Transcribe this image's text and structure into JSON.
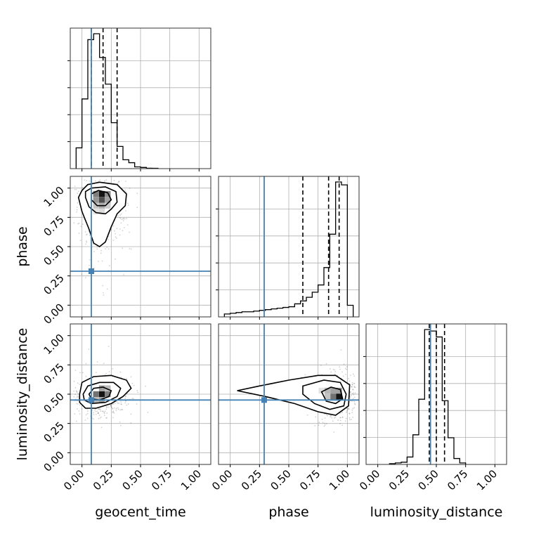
{
  "chart_data": {
    "type": "corner",
    "parameters": [
      "geocent_time",
      "phase",
      "luminosity_distance"
    ],
    "axis_labels": [
      "geocent_time",
      "phase",
      "luminosity_distance"
    ],
    "tick_labels": [
      "0.00",
      "0.25",
      "0.50",
      "0.75",
      "1.00"
    ],
    "ticks": [
      0,
      0.25,
      0.5,
      0.75,
      1.0
    ],
    "axis_range": [
      -0.1,
      1.1
    ],
    "grid": true,
    "truths": [
      0.08,
      0.29,
      0.45
    ],
    "truth_color": "#4682b4",
    "hist_color": "#000000",
    "quantiles": [
      [
        0.08,
        0.18,
        0.3
      ],
      [
        0.62,
        0.84,
        0.93
      ],
      [
        0.44,
        0.5,
        0.57
      ]
    ],
    "histograms": [
      {
        "parameter": "geocent_time",
        "bin_edges": [
          -0.05,
          0.0,
          0.05,
          0.1,
          0.15,
          0.2,
          0.25,
          0.3,
          0.35,
          0.4,
          0.45,
          0.5,
          0.55,
          0.6,
          0.65
        ],
        "counts": [
          0.14,
          0.47,
          0.87,
          0.91,
          0.75,
          0.57,
          0.31,
          0.15,
          0.06,
          0.04,
          0.012,
          0.008,
          0.003,
          0.002
        ]
      },
      {
        "parameter": "phase",
        "bin_edges": [
          -0.05,
          0.0,
          0.05,
          0.1,
          0.15,
          0.2,
          0.25,
          0.3,
          0.35,
          0.4,
          0.45,
          0.5,
          0.55,
          0.6,
          0.65,
          0.7,
          0.75,
          0.8,
          0.85,
          0.9,
          0.95,
          1.0,
          1.05
        ],
        "counts": [
          0.02,
          0.025,
          0.03,
          0.035,
          0.035,
          0.04,
          0.045,
          0.05,
          0.055,
          0.06,
          0.065,
          0.07,
          0.09,
          0.11,
          0.135,
          0.17,
          0.22,
          0.34,
          0.57,
          0.93,
          0.91,
          0.08
        ]
      },
      {
        "parameter": "luminosity_distance",
        "bin_edges": [
          0.1,
          0.15,
          0.2,
          0.25,
          0.3,
          0.35,
          0.4,
          0.45,
          0.5,
          0.55,
          0.6,
          0.65,
          0.7,
          0.75
        ],
        "counts": [
          0.005,
          0.01,
          0.015,
          0.05,
          0.2,
          0.44,
          0.91,
          0.9,
          0.86,
          0.43,
          0.18,
          0.04,
          0.01
        ]
      }
    ],
    "density_2d": [
      {
        "x": "geocent_time",
        "y": "phase",
        "peak": [
          0.17,
          0.93
        ],
        "spread": [
          0.09,
          0.2
        ],
        "contours": [
          [
            [
              0.0,
              0.98
            ],
            [
              0.05,
              1.03
            ],
            [
              0.15,
              1.05
            ],
            [
              0.3,
              1.03
            ],
            [
              0.38,
              0.95
            ],
            [
              0.37,
              0.85
            ],
            [
              0.3,
              0.78
            ],
            [
              0.25,
              0.67
            ],
            [
              0.2,
              0.54
            ],
            [
              0.15,
              0.5
            ],
            [
              0.1,
              0.53
            ],
            [
              0.06,
              0.65
            ],
            [
              0.0,
              0.8
            ],
            [
              -0.03,
              0.92
            ],
            [
              0.0,
              0.98
            ]
          ],
          [
            [
              0.03,
              0.97
            ],
            [
              0.08,
              1.0
            ],
            [
              0.2,
              1.01
            ],
            [
              0.29,
              0.97
            ],
            [
              0.3,
              0.88
            ],
            [
              0.25,
              0.82
            ],
            [
              0.2,
              0.78
            ],
            [
              0.12,
              0.79
            ],
            [
              0.06,
              0.84
            ],
            [
              0.03,
              0.92
            ],
            [
              0.03,
              0.97
            ]
          ],
          [
            [
              0.08,
              0.95
            ],
            [
              0.14,
              0.98
            ],
            [
              0.22,
              0.96
            ],
            [
              0.25,
              0.9
            ],
            [
              0.2,
              0.85
            ],
            [
              0.13,
              0.85
            ],
            [
              0.08,
              0.9
            ],
            [
              0.08,
              0.95
            ]
          ]
        ],
        "cells": [
          {
            "x": 0.17,
            "y": 0.95,
            "v": 1.0
          },
          {
            "x": 0.12,
            "y": 0.95,
            "v": 0.55
          },
          {
            "x": 0.22,
            "y": 0.95,
            "v": 0.5
          },
          {
            "x": 0.17,
            "y": 0.9,
            "v": 0.75
          },
          {
            "x": 0.12,
            "y": 0.9,
            "v": 0.45
          },
          {
            "x": 0.22,
            "y": 0.9,
            "v": 0.4
          },
          {
            "x": 0.17,
            "y": 0.85,
            "v": 0.35
          },
          {
            "x": 0.12,
            "y": 0.85,
            "v": 0.25
          },
          {
            "x": 0.22,
            "y": 0.85,
            "v": 0.22
          },
          {
            "x": 0.17,
            "y": 0.8,
            "v": 0.15
          },
          {
            "x": 0.12,
            "y": 0.8,
            "v": 0.12
          }
        ]
      },
      {
        "x": "geocent_time",
        "y": "luminosity_distance",
        "peak": [
          0.17,
          0.49
        ],
        "spread": [
          0.1,
          0.07
        ],
        "contours": [
          [
            [
              -0.02,
              0.5
            ],
            [
              0.0,
              0.6
            ],
            [
              0.1,
              0.65
            ],
            [
              0.25,
              0.66
            ],
            [
              0.38,
              0.62
            ],
            [
              0.42,
              0.55
            ],
            [
              0.35,
              0.48
            ],
            [
              0.25,
              0.42
            ],
            [
              0.12,
              0.38
            ],
            [
              0.03,
              0.38
            ],
            [
              -0.02,
              0.43
            ],
            [
              -0.02,
              0.5
            ]
          ],
          [
            [
              0.01,
              0.5
            ],
            [
              0.05,
              0.57
            ],
            [
              0.15,
              0.6
            ],
            [
              0.27,
              0.6
            ],
            [
              0.33,
              0.55
            ],
            [
              0.3,
              0.48
            ],
            [
              0.2,
              0.43
            ],
            [
              0.08,
              0.42
            ],
            [
              0.02,
              0.45
            ],
            [
              0.01,
              0.5
            ]
          ],
          [
            [
              0.06,
              0.5
            ],
            [
              0.1,
              0.55
            ],
            [
              0.18,
              0.56
            ],
            [
              0.25,
              0.53
            ],
            [
              0.23,
              0.48
            ],
            [
              0.15,
              0.45
            ],
            [
              0.08,
              0.46
            ],
            [
              0.06,
              0.5
            ]
          ]
        ],
        "cells": [
          {
            "x": 0.17,
            "y": 0.5,
            "v": 1.0
          },
          {
            "x": 0.12,
            "y": 0.5,
            "v": 0.6
          },
          {
            "x": 0.22,
            "y": 0.5,
            "v": 0.55
          },
          {
            "x": 0.17,
            "y": 0.55,
            "v": 0.4
          },
          {
            "x": 0.17,
            "y": 0.45,
            "v": 0.4
          },
          {
            "x": 0.12,
            "y": 0.45,
            "v": 0.3
          },
          {
            "x": 0.22,
            "y": 0.55,
            "v": 0.3
          }
        ]
      },
      {
        "x": "phase",
        "y": "luminosity_distance",
        "peak": [
          0.92,
          0.48
        ],
        "spread": [
          0.1,
          0.08
        ],
        "contours": [
          [
            [
              0.06,
              0.53
            ],
            [
              0.25,
              0.57
            ],
            [
              0.5,
              0.62
            ],
            [
              0.75,
              0.66
            ],
            [
              0.9,
              0.66
            ],
            [
              1.02,
              0.58
            ],
            [
              1.01,
              0.4
            ],
            [
              0.9,
              0.32
            ],
            [
              0.75,
              0.35
            ],
            [
              0.55,
              0.42
            ],
            [
              0.3,
              0.48
            ],
            [
              0.06,
              0.53
            ]
          ],
          [
            [
              0.62,
              0.57
            ],
            [
              0.8,
              0.62
            ],
            [
              0.94,
              0.6
            ],
            [
              0.99,
              0.5
            ],
            [
              0.97,
              0.4
            ],
            [
              0.85,
              0.37
            ],
            [
              0.72,
              0.42
            ],
            [
              0.62,
              0.5
            ],
            [
              0.62,
              0.57
            ]
          ],
          [
            [
              0.78,
              0.52
            ],
            [
              0.86,
              0.56
            ],
            [
              0.94,
              0.54
            ],
            [
              0.96,
              0.46
            ],
            [
              0.9,
              0.42
            ],
            [
              0.82,
              0.44
            ],
            [
              0.78,
              0.52
            ]
          ]
        ],
        "cells": [
          {
            "x": 0.93,
            "y": 0.48,
            "v": 1.0
          },
          {
            "x": 0.88,
            "y": 0.48,
            "v": 0.6
          },
          {
            "x": 0.88,
            "y": 0.53,
            "v": 0.4
          },
          {
            "x": 0.93,
            "y": 0.53,
            "v": 0.4
          },
          {
            "x": 0.83,
            "y": 0.53,
            "v": 0.3
          },
          {
            "x": 0.83,
            "y": 0.48,
            "v": 0.25
          },
          {
            "x": 0.78,
            "y": 0.53,
            "v": 0.12
          }
        ]
      }
    ]
  }
}
